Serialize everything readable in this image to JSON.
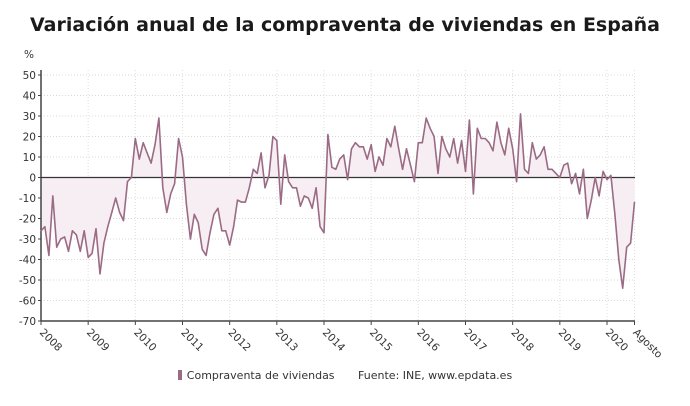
{
  "chart_data": {
    "type": "line",
    "title": "Variación anual de la compraventa de viviendas en España",
    "ylabel": "%",
    "ylim": [
      -70,
      50
    ],
    "yticks": [
      50,
      40,
      30,
      20,
      10,
      0,
      -10,
      -20,
      -30,
      -40,
      -50,
      -60,
      -70
    ],
    "xtick_labels": [
      "2008",
      "2009",
      "2010",
      "2011",
      "2012",
      "2013",
      "2014",
      "2015",
      "2016",
      "2017",
      "2018",
      "2019",
      "2020",
      "Agosto"
    ],
    "x_start": "2008-01",
    "x_end": "2020-08",
    "frequency": "monthly",
    "grid": true,
    "legend_position": "bottom",
    "line_color": "#9b6b85",
    "fill_color": "#f6eef2",
    "series": [
      {
        "name": "Compraventa de viviendas",
        "values": [
          -26,
          -24,
          -38,
          -9,
          -34,
          -30,
          -29,
          -36,
          -26,
          -28,
          -36,
          -26,
          -39,
          -37,
          -25,
          -47,
          -32,
          -24,
          -17,
          -10,
          -17,
          -21,
          -2,
          0,
          19,
          9,
          17,
          12,
          7,
          16,
          29,
          -5,
          -17,
          -8,
          -3,
          19,
          10,
          -13,
          -30,
          -18,
          -22,
          -35,
          -38,
          -27,
          -18,
          -15,
          -26,
          -26,
          -33,
          -24,
          -11,
          -12,
          -12,
          -5,
          4,
          2,
          12,
          -5,
          1,
          20,
          18,
          -13,
          11,
          -2,
          -5,
          -5,
          -14,
          -9,
          -10,
          -15,
          -5,
          -24,
          -27,
          21,
          5,
          4,
          9,
          11,
          -1,
          14,
          17,
          15,
          15,
          9,
          16,
          3,
          10,
          6,
          19,
          15,
          25,
          14,
          4,
          14,
          6,
          -2,
          17,
          17,
          29,
          24,
          20,
          2,
          20,
          14,
          10,
          19,
          7,
          18,
          3,
          28,
          -8,
          24,
          19,
          19,
          17,
          13,
          27,
          17,
          11,
          24,
          14,
          -2,
          31,
          4,
          2,
          17,
          9,
          11,
          15,
          4,
          4,
          2,
          0,
          6,
          7,
          -3,
          2,
          -8,
          4,
          -20,
          -11,
          0,
          -9,
          3,
          -1,
          1,
          -18,
          -40,
          -54,
          -34,
          -32,
          -12
        ]
      }
    ],
    "source": "Fuente: INE, www.epdata.es"
  }
}
